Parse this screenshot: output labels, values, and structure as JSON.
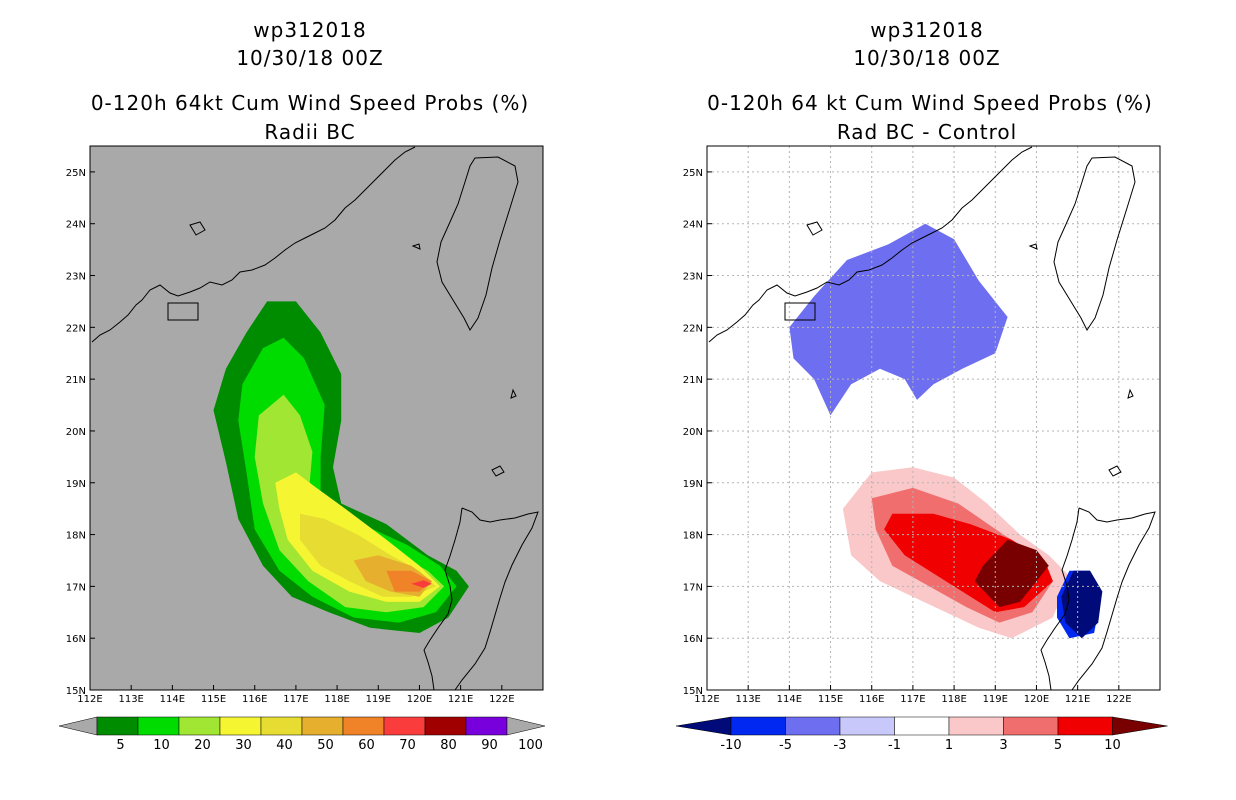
{
  "colors": {
    "land_gray": "#a9a9a9",
    "prob_scale": [
      "#008c00",
      "#00dc00",
      "#a0e632",
      "#f5f532",
      "#e6dc32",
      "#e6af2d",
      "#f08228",
      "#fa3c3c",
      "#a00000",
      "#7800dc"
    ],
    "diff_scale": [
      "#000a78",
      "#0028f0",
      "#6e6ef0",
      "#c8c8fa",
      "#ffffff",
      "#fac8c8",
      "#f06e6e",
      "#f00000",
      "#780000"
    ]
  },
  "left_panel": {
    "title1": "wp312018",
    "title2": "10/30/18 00Z",
    "title3": "0-120h 64kt Cum Wind Speed Probs (%)",
    "title4": "Radii BC",
    "colorbar_labels": [
      "5",
      "10",
      "20",
      "30",
      "40",
      "50",
      "60",
      "70",
      "80",
      "90",
      "100"
    ]
  },
  "right_panel": {
    "title1": "wp312018",
    "title2": "10/30/18 00Z",
    "title3": "0-120h 64 kt Cum Wind Speed Probs (%)",
    "title4": "Rad BC - Control",
    "colorbar_labels": [
      "-10",
      "-5",
      "-3",
      "-1",
      "1",
      "3",
      "5",
      "10"
    ]
  },
  "chart_data": [
    {
      "type": "filled-contour-map",
      "title": "0-120h 64kt Cum Wind Speed Probs (%)",
      "subtitle": "Radii BC",
      "storm": "wp312018",
      "time": "10/30/18 00Z",
      "xlim": [
        112,
        123
      ],
      "ylim": [
        15,
        25.5
      ],
      "x_ticks": [
        112,
        113,
        114,
        115,
        116,
        117,
        118,
        119,
        120,
        121,
        122
      ],
      "y_ticks": [
        15,
        16,
        17,
        18,
        19,
        20,
        21,
        22,
        23,
        24,
        25
      ],
      "x_tick_labels": [
        "112E",
        "113E",
        "114E",
        "115E",
        "116E",
        "117E",
        "118E",
        "119E",
        "120E",
        "121E",
        "122E"
      ],
      "y_tick_labels": [
        "15N",
        "16N",
        "17N",
        "18N",
        "19N",
        "20N",
        "21N",
        "22N",
        "23N",
        "24N",
        "25N"
      ],
      "levels": [
        5,
        10,
        20,
        30,
        40,
        50,
        60,
        70,
        80,
        90,
        100
      ],
      "regions": [
        {
          "level": 5,
          "polygon": [
            [
              115.3,
              21.2
            ],
            [
              115.8,
              21.9
            ],
            [
              116.3,
              22.5
            ],
            [
              117.0,
              22.5
            ],
            [
              117.6,
              21.9
            ],
            [
              118.1,
              21.1
            ],
            [
              118.1,
              20.2
            ],
            [
              117.9,
              19.3
            ],
            [
              118.1,
              18.6
            ],
            [
              119.2,
              18.2
            ],
            [
              120.2,
              17.6
            ],
            [
              120.9,
              17.3
            ],
            [
              121.2,
              17.0
            ],
            [
              120.7,
              16.4
            ],
            [
              120.0,
              16.1
            ],
            [
              118.8,
              16.2
            ],
            [
              117.8,
              16.5
            ],
            [
              116.9,
              16.8
            ],
            [
              116.2,
              17.4
            ],
            [
              115.6,
              18.3
            ],
            [
              115.3,
              19.4
            ],
            [
              115.0,
              20.4
            ]
          ]
        },
        {
          "level": 10,
          "polygon": [
            [
              115.7,
              20.9
            ],
            [
              116.2,
              21.6
            ],
            [
              116.7,
              21.8
            ],
            [
              117.2,
              21.4
            ],
            [
              117.7,
              20.5
            ],
            [
              117.6,
              19.5
            ],
            [
              117.6,
              18.8
            ],
            [
              118.6,
              18.2
            ],
            [
              119.7,
              17.8
            ],
            [
              120.5,
              17.4
            ],
            [
              120.9,
              17.0
            ],
            [
              120.4,
              16.5
            ],
            [
              119.5,
              16.3
            ],
            [
              118.4,
              16.4
            ],
            [
              117.4,
              16.8
            ],
            [
              116.6,
              17.3
            ],
            [
              116.0,
              18.1
            ],
            [
              115.8,
              19.2
            ],
            [
              115.6,
              20.2
            ]
          ]
        },
        {
          "level": 20,
          "polygon": [
            [
              116.1,
              20.3
            ],
            [
              116.7,
              20.7
            ],
            [
              117.1,
              20.3
            ],
            [
              117.4,
              19.6
            ],
            [
              117.3,
              18.7
            ],
            [
              118.1,
              18.1
            ],
            [
              119.3,
              17.7
            ],
            [
              120.2,
              17.3
            ],
            [
              120.6,
              17.0
            ],
            [
              120.1,
              16.6
            ],
            [
              119.2,
              16.5
            ],
            [
              118.2,
              16.6
            ],
            [
              117.3,
              17.1
            ],
            [
              116.6,
              17.7
            ],
            [
              116.2,
              18.6
            ],
            [
              116.0,
              19.5
            ]
          ]
        },
        {
          "level": 30,
          "polygon": [
            [
              116.5,
              19.0
            ],
            [
              117.0,
              19.2
            ],
            [
              117.5,
              18.9
            ],
            [
              118.2,
              18.5
            ],
            [
              119.2,
              17.9
            ],
            [
              120.0,
              17.4
            ],
            [
              120.5,
              17.0
            ],
            [
              120.0,
              16.7
            ],
            [
              119.2,
              16.7
            ],
            [
              118.3,
              16.9
            ],
            [
              117.4,
              17.3
            ],
            [
              116.8,
              17.9
            ],
            [
              116.6,
              18.5
            ]
          ]
        },
        {
          "level": 40,
          "polygon": [
            [
              117.1,
              18.4
            ],
            [
              117.7,
              18.3
            ],
            [
              118.5,
              18.0
            ],
            [
              119.3,
              17.6
            ],
            [
              120.0,
              17.3
            ],
            [
              120.4,
              17.0
            ],
            [
              119.8,
              16.8
            ],
            [
              119.1,
              16.8
            ],
            [
              118.3,
              17.1
            ],
            [
              117.6,
              17.4
            ],
            [
              117.1,
              17.9
            ]
          ]
        },
        {
          "level": 50,
          "polygon": [
            [
              118.4,
              17.5
            ],
            [
              119.0,
              17.6
            ],
            [
              119.8,
              17.4
            ],
            [
              120.3,
              17.1
            ],
            [
              120.0,
              16.8
            ],
            [
              119.3,
              16.9
            ],
            [
              118.7,
              17.1
            ]
          ]
        },
        {
          "level": 60,
          "polygon": [
            [
              119.2,
              17.3
            ],
            [
              119.8,
              17.3
            ],
            [
              120.3,
              17.1
            ],
            [
              120.0,
              16.9
            ],
            [
              119.4,
              16.9
            ]
          ]
        },
        {
          "level": 70,
          "polygon": [
            [
              119.8,
              17.05
            ],
            [
              120.1,
              17.12
            ],
            [
              120.3,
              17.05
            ],
            [
              120.1,
              16.97
            ]
          ]
        }
      ]
    },
    {
      "type": "filled-contour-map",
      "title": "0-120h 64 kt Cum Wind Speed Probs (%)",
      "subtitle": "Rad BC - Control",
      "storm": "wp312018",
      "time": "10/30/18 00Z",
      "xlim": [
        112,
        123
      ],
      "ylim": [
        15,
        25.5
      ],
      "x_ticks": [
        112,
        113,
        114,
        115,
        116,
        117,
        118,
        119,
        120,
        121,
        122
      ],
      "y_ticks": [
        15,
        16,
        17,
        18,
        19,
        20,
        21,
        22,
        23,
        24,
        25
      ],
      "x_tick_labels": [
        "112E",
        "113E",
        "114E",
        "115E",
        "116E",
        "117E",
        "118E",
        "119E",
        "120E",
        "121E",
        "122E"
      ],
      "y_tick_labels": [
        "15N",
        "16N",
        "17N",
        "18N",
        "19N",
        "20N",
        "21N",
        "22N",
        "23N",
        "24N",
        "25N"
      ],
      "levels": [
        -10,
        -5,
        -3,
        -1,
        1,
        3,
        5,
        10
      ],
      "regions": [
        {
          "level": -3,
          "polygon": [
            [
              114.0,
              22.0
            ],
            [
              114.6,
              22.6
            ],
            [
              115.4,
              23.3
            ],
            [
              116.4,
              23.6
            ],
            [
              117.3,
              24.0
            ],
            [
              118.0,
              23.7
            ],
            [
              118.6,
              22.9
            ],
            [
              119.3,
              22.2
            ],
            [
              119.0,
              21.5
            ],
            [
              118.2,
              21.2
            ],
            [
              117.5,
              20.9
            ],
            [
              117.1,
              20.6
            ],
            [
              116.8,
              21.0
            ],
            [
              116.2,
              21.2
            ],
            [
              115.5,
              20.9
            ],
            [
              115.0,
              20.3
            ],
            [
              114.6,
              21.0
            ],
            [
              114.1,
              21.4
            ]
          ]
        },
        {
          "level": 1,
          "polygon": [
            [
              115.3,
              18.5
            ],
            [
              116.0,
              19.2
            ],
            [
              117.0,
              19.3
            ],
            [
              118.0,
              19.1
            ],
            [
              118.8,
              18.6
            ],
            [
              119.6,
              18.0
            ],
            [
              120.3,
              17.6
            ],
            [
              120.8,
              17.2
            ],
            [
              120.4,
              16.4
            ],
            [
              119.4,
              16.0
            ],
            [
              118.6,
              16.2
            ],
            [
              117.8,
              16.5
            ],
            [
              117.0,
              16.8
            ],
            [
              116.2,
              17.1
            ],
            [
              115.5,
              17.6
            ]
          ]
        },
        {
          "level": 3,
          "polygon": [
            [
              116.0,
              18.7
            ],
            [
              117.0,
              18.9
            ],
            [
              118.1,
              18.6
            ],
            [
              119.2,
              18.0
            ],
            [
              120.2,
              17.5
            ],
            [
              120.4,
              17.1
            ],
            [
              119.9,
              16.5
            ],
            [
              119.1,
              16.3
            ],
            [
              118.3,
              16.6
            ],
            [
              117.4,
              17.0
            ],
            [
              116.5,
              17.4
            ],
            [
              116.1,
              18.1
            ]
          ]
        },
        {
          "level": 5,
          "polygon": [
            [
              116.5,
              18.4
            ],
            [
              117.5,
              18.4
            ],
            [
              118.4,
              18.2
            ],
            [
              119.4,
              17.9
            ],
            [
              120.2,
              17.5
            ],
            [
              120.4,
              17.1
            ],
            [
              119.7,
              16.6
            ],
            [
              119.0,
              16.5
            ],
            [
              118.4,
              16.8
            ],
            [
              117.6,
              17.2
            ],
            [
              116.8,
              17.6
            ],
            [
              116.3,
              18.1
            ]
          ]
        },
        {
          "level": 10,
          "polygon": [
            [
              118.7,
              17.4
            ],
            [
              119.3,
              17.9
            ],
            [
              120.0,
              17.7
            ],
            [
              120.3,
              17.4
            ],
            [
              119.6,
              16.7
            ],
            [
              119.1,
              16.6
            ],
            [
              118.5,
              17.1
            ]
          ]
        },
        {
          "level": -5,
          "polygon": [
            [
              120.5,
              16.8
            ],
            [
              120.8,
              17.3
            ],
            [
              121.3,
              17.3
            ],
            [
              121.6,
              16.9
            ],
            [
              121.4,
              16.1
            ],
            [
              120.8,
              16.0
            ],
            [
              120.5,
              16.4
            ]
          ]
        },
        {
          "level": -10,
          "polygon": [
            [
              120.6,
              16.8
            ],
            [
              120.9,
              17.3
            ],
            [
              121.3,
              17.3
            ],
            [
              121.6,
              16.9
            ],
            [
              121.5,
              16.3
            ],
            [
              121.1,
              16.0
            ],
            [
              120.7,
              16.3
            ]
          ]
        }
      ]
    }
  ]
}
